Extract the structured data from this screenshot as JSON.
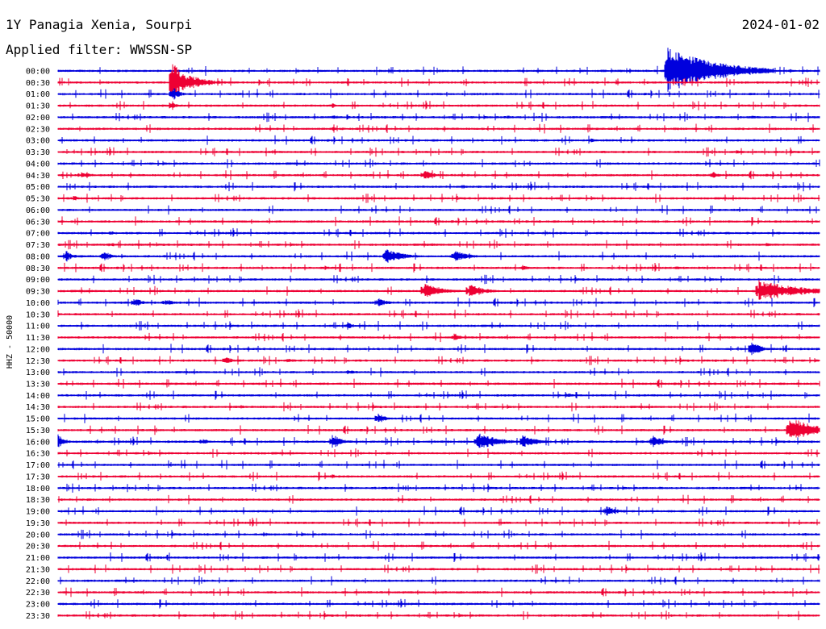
{
  "header": {
    "station": "1Y Panagia Xenia, Sourpi",
    "date": "2024-01-02",
    "filter": "Applied filter: WWSSN-SP"
  },
  "chart_data": {
    "type": "helicorder",
    "ylabel": "HHZ - 50000",
    "colors": [
      "#0000dd",
      "#ee0033"
    ],
    "traces": [
      {
        "label": "00:00",
        "events": [
          [
            0.8,
            30,
            0.14
          ],
          [
            0.96,
            3,
            0.02
          ]
        ]
      },
      {
        "label": "00:30",
        "events": [
          [
            0.15,
            30,
            0.03
          ],
          [
            0.17,
            10,
            0.06
          ]
        ]
      },
      {
        "label": "01:00",
        "events": [
          [
            0.15,
            10,
            0.02
          ],
          [
            0.55,
            2,
            0.02
          ]
        ]
      },
      {
        "label": "01:30",
        "events": [
          [
            0.15,
            8,
            0.01
          ],
          [
            0.36,
            4,
            0.01
          ]
        ]
      },
      {
        "label": "02:00",
        "events": [
          [
            0.36,
            3,
            0.03
          ],
          [
            0.59,
            3,
            0.02
          ],
          [
            0.91,
            3,
            0.03
          ]
        ]
      },
      {
        "label": "02:30",
        "events": [
          [
            0.36,
            3,
            0.02
          ],
          [
            0.81,
            2,
            0.02
          ]
        ]
      },
      {
        "label": "03:00",
        "events": [
          [
            0.7,
            3,
            0.02
          ]
        ]
      },
      {
        "label": "03:30",
        "events": [
          [
            0.28,
            3,
            0.02
          ],
          [
            0.89,
            3,
            0.02
          ]
        ]
      },
      {
        "label": "04:00",
        "events": [
          [
            0.58,
            2,
            0.02
          ]
        ]
      },
      {
        "label": "04:30",
        "events": [
          [
            0.03,
            5,
            0.03
          ],
          [
            0.48,
            7,
            0.03
          ],
          [
            0.86,
            5,
            0.02
          ]
        ]
      },
      {
        "label": "05:00",
        "events": [
          [
            0.53,
            3,
            0.04
          ],
          [
            0.12,
            2,
            0.05
          ]
        ]
      },
      {
        "label": "05:30",
        "events": [
          [
            0.02,
            4,
            0.02
          ]
        ]
      },
      {
        "label": "06:00",
        "events": [
          [
            0.36,
            2,
            0.02
          ]
        ]
      },
      {
        "label": "06:30",
        "events": [
          [
            0.4,
            2,
            0.01
          ],
          [
            0.58,
            2,
            0.01
          ]
        ]
      },
      {
        "label": "07:00",
        "events": [
          [
            0.07,
            4,
            0.01
          ],
          [
            0.64,
            3,
            0.02
          ]
        ]
      },
      {
        "label": "07:30",
        "events": [
          [
            0.07,
            4,
            0.01
          ],
          [
            0.49,
            3,
            0.01
          ],
          [
            0.93,
            3,
            0.02
          ]
        ]
      },
      {
        "label": "08:00",
        "events": [
          [
            0.01,
            8,
            0.02
          ],
          [
            0.06,
            8,
            0.02
          ],
          [
            0.43,
            10,
            0.05
          ],
          [
            0.52,
            8,
            0.04
          ]
        ]
      },
      {
        "label": "08:30",
        "events": [
          [
            0.35,
            3,
            0.02
          ],
          [
            0.61,
            4,
            0.02
          ],
          [
            0.81,
            3,
            0.04
          ]
        ]
      },
      {
        "label": "09:00",
        "events": []
      },
      {
        "label": "09:30",
        "events": [
          [
            0.48,
            12,
            0.05
          ],
          [
            0.54,
            10,
            0.04
          ],
          [
            0.92,
            14,
            0.12
          ]
        ]
      },
      {
        "label": "10:00",
        "events": [
          [
            0.1,
            6,
            0.03
          ],
          [
            0.14,
            5,
            0.03
          ],
          [
            0.42,
            6,
            0.03
          ]
        ]
      },
      {
        "label": "10:30",
        "events": []
      },
      {
        "label": "11:00",
        "events": [
          [
            0.38,
            5,
            0.02
          ]
        ]
      },
      {
        "label": "11:30",
        "events": [
          [
            0.52,
            6,
            0.02
          ]
        ]
      },
      {
        "label": "12:00",
        "events": [
          [
            0.91,
            10,
            0.03
          ]
        ]
      },
      {
        "label": "12:30",
        "events": [
          [
            0.22,
            6,
            0.02
          ],
          [
            0.3,
            3,
            0.04
          ]
        ]
      },
      {
        "label": "13:00",
        "events": [
          [
            0.38,
            3,
            0.04
          ]
        ]
      },
      {
        "label": "13:30",
        "events": []
      },
      {
        "label": "14:00",
        "events": [
          [
            0.67,
            5,
            0.01
          ],
          [
            0.78,
            2,
            0.02
          ],
          [
            0.92,
            2,
            0.02
          ]
        ]
      },
      {
        "label": "14:30",
        "events": [
          [
            0.24,
            3,
            0.02
          ]
        ]
      },
      {
        "label": "15:00",
        "events": [
          [
            0.42,
            8,
            0.02
          ],
          [
            0.34,
            2,
            0.02
          ]
        ]
      },
      {
        "label": "15:30",
        "events": [
          [
            0.07,
            2,
            0.02
          ],
          [
            0.96,
            18,
            0.07
          ]
        ]
      },
      {
        "label": "16:00",
        "events": [
          [
            0.0,
            10,
            0.02
          ],
          [
            0.19,
            5,
            0.02
          ],
          [
            0.36,
            10,
            0.03
          ],
          [
            0.55,
            12,
            0.06
          ],
          [
            0.61,
            10,
            0.04
          ],
          [
            0.78,
            9,
            0.03
          ]
        ]
      },
      {
        "label": "16:30",
        "events": []
      },
      {
        "label": "17:00",
        "events": [
          [
            0.14,
            2,
            0.01
          ]
        ]
      },
      {
        "label": "17:30",
        "events": [
          [
            0.36,
            4,
            0.01
          ]
        ]
      },
      {
        "label": "18:00",
        "events": [
          [
            0.43,
            2,
            0.02
          ],
          [
            0.79,
            2,
            0.02
          ],
          [
            0.97,
            2,
            0.02
          ]
        ]
      },
      {
        "label": "18:30",
        "events": [
          [
            0.46,
            2,
            0.02
          ]
        ]
      },
      {
        "label": "19:00",
        "events": [
          [
            0.72,
            6,
            0.04
          ]
        ]
      },
      {
        "label": "19:30",
        "events": [
          [
            0.58,
            2,
            0.02
          ],
          [
            0.95,
            2,
            0.02
          ]
        ]
      },
      {
        "label": "20:00",
        "events": [
          [
            0.27,
            3,
            0.02
          ],
          [
            0.98,
            3,
            0.02
          ]
        ]
      },
      {
        "label": "20:30",
        "events": [
          [
            0.92,
            3,
            0.01
          ]
        ]
      },
      {
        "label": "21:00",
        "events": [
          [
            0.13,
            2,
            0.02
          ],
          [
            0.28,
            2,
            0.02
          ]
        ]
      },
      {
        "label": "21:30",
        "events": [
          [
            0.13,
            2,
            0.02
          ],
          [
            0.96,
            2,
            0.02
          ]
        ]
      },
      {
        "label": "22:00",
        "events": [
          [
            0.8,
            2,
            0.01
          ]
        ]
      },
      {
        "label": "22:30",
        "events": [
          [
            0.62,
            2,
            0.01
          ]
        ]
      },
      {
        "label": "23:00",
        "events": [
          [
            0.2,
            2,
            0.02
          ],
          [
            0.58,
            2,
            0.02
          ]
        ]
      },
      {
        "label": "23:30",
        "events": [
          [
            0.19,
            2,
            0.01
          ]
        ]
      }
    ]
  }
}
